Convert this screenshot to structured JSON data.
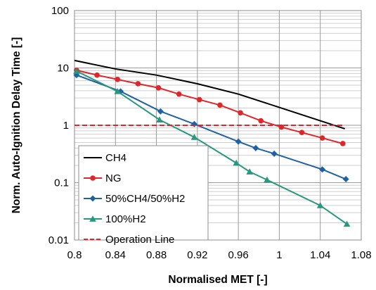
{
  "chart_data": {
    "type": "line",
    "title": "",
    "xlabel": "Normalised MET [-]",
    "ylabel": "Norm. Auto-Ignition Delay Time [-]",
    "xlim": [
      0.8,
      1.08
    ],
    "ylim": [
      0.01,
      100
    ],
    "yscale": "log",
    "grid": true,
    "legend_position": "bottom-left",
    "x_ticks": [
      "0.8",
      "0.84",
      "0.88",
      "0.92",
      "0.96",
      "1",
      "1.04",
      "1.08"
    ],
    "y_ticks": [
      "0.01",
      "0.1",
      "1",
      "10",
      "100"
    ],
    "series": [
      {
        "name": "CH4",
        "color": "#000000",
        "marker": "none",
        "dash": "solid",
        "x": [
          0.8,
          0.84,
          0.88,
          0.92,
          0.96,
          1.0,
          1.04,
          1.064
        ],
        "y": [
          13.5,
          9.6,
          7.5,
          5.3,
          3.5,
          2.05,
          1.2,
          0.87
        ]
      },
      {
        "name": "NG",
        "color": "#e0262b",
        "marker": "circle",
        "dash": "solid",
        "x": [
          0.802,
          0.822,
          0.842,
          0.862,
          0.882,
          0.902,
          0.922,
          0.942,
          0.962,
          0.982,
          1.002,
          1.022,
          1.042,
          1.062
        ],
        "y": [
          9.1,
          7.5,
          6.3,
          5.3,
          4.5,
          3.5,
          2.8,
          2.25,
          1.65,
          1.2,
          0.93,
          0.75,
          0.6,
          0.48
        ]
      },
      {
        "name": "50%CH4/50%H2",
        "color": "#1f62a3",
        "marker": "diamond",
        "dash": "solid",
        "x": [
          0.802,
          0.845,
          0.884,
          0.917,
          0.96,
          0.977,
          0.995,
          1.042,
          1.065
        ],
        "y": [
          7.5,
          3.9,
          1.75,
          1.05,
          0.52,
          0.4,
          0.32,
          0.17,
          0.115
        ]
      },
      {
        "name": "100%H2",
        "color": "#27977f",
        "marker": "triangle",
        "dash": "solid",
        "x": [
          0.802,
          0.842,
          0.883,
          0.917,
          0.958,
          0.971,
          0.988,
          1.04,
          1.066
        ],
        "y": [
          8.8,
          3.9,
          1.25,
          0.62,
          0.22,
          0.155,
          0.112,
          0.04,
          0.019
        ]
      },
      {
        "name": "Operation Line",
        "color": "#e0262b",
        "marker": "none",
        "dash": "dashed",
        "x": [
          0.8,
          1.064
        ],
        "y": [
          1,
          1
        ]
      }
    ]
  }
}
